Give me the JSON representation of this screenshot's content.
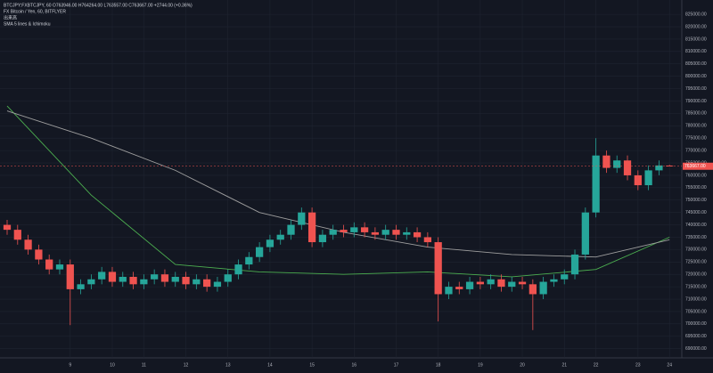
{
  "header": {
    "line1": "BTCJPY:FXBTCJPY, 60  O763946.00 H764264.00 L763557.00 C763667.00 +2744.00 (+0.36%)",
    "line2": "FX Bitcoin / Yen, 60, BITFLYER",
    "line3": "出来高",
    "line4": "SMA 5 lines & Ichimoku"
  },
  "chart_data": {
    "type": "candlestick",
    "up_color": "#26a69a",
    "down_color": "#ef5350",
    "grid": true,
    "categories": [
      null,
      null,
      null,
      null,
      null,
      null,
      "9",
      null,
      null,
      null,
      "10",
      null,
      null,
      "11",
      null,
      null,
      null,
      "12",
      null,
      null,
      null,
      "13",
      null,
      null,
      null,
      "14",
      null,
      null,
      null,
      "15",
      null,
      null,
      null,
      "16",
      null,
      null,
      null,
      "17",
      null,
      null,
      null,
      "18",
      null,
      null,
      null,
      "19",
      null,
      null,
      null,
      "20",
      null,
      null,
      null,
      "21",
      null,
      null,
      "22",
      null,
      null,
      null,
      "23",
      null,
      null,
      "24"
    ],
    "open": [
      740000,
      738000,
      734000,
      730000,
      726000,
      722000,
      724000,
      714000,
      716000,
      718000,
      721000,
      717000,
      719000,
      716000,
      718000,
      720000,
      717000,
      719000,
      716000,
      718000,
      715000,
      717000,
      720000,
      724000,
      727000,
      731000,
      734000,
      736000,
      740000,
      745000,
      733000,
      736000,
      738000,
      737000,
      739000,
      737000,
      736000,
      738000,
      736000,
      737000,
      735000,
      733000,
      712000,
      715000,
      714000,
      717000,
      716000,
      718000,
      715000,
      717000,
      716000,
      712000,
      717000,
      718000,
      720000,
      728000,
      745000,
      768000,
      763000,
      766000,
      760000,
      756000,
      762000,
      763946
    ],
    "high": [
      742000,
      740000,
      736000,
      732000,
      728000,
      726000,
      726000,
      718000,
      720000,
      723000,
      723000,
      721000,
      721000,
      720000,
      722000,
      722000,
      721000,
      721000,
      720000,
      720000,
      719000,
      722000,
      726000,
      729000,
      733000,
      736000,
      738000,
      742000,
      747000,
      747000,
      738000,
      740000,
      740000,
      741000,
      741000,
      739000,
      740000,
      740000,
      739000,
      739000,
      737000,
      735000,
      717000,
      717000,
      719000,
      719000,
      720000,
      720000,
      719000,
      719000,
      718000,
      719000,
      720000,
      722000,
      730000,
      747000,
      775000,
      770000,
      768000,
      768000,
      762000,
      764000,
      766000,
      764264
    ],
    "low": [
      736000,
      732000,
      728000,
      724000,
      720000,
      720000,
      699500,
      712000,
      714000,
      716000,
      715000,
      715000,
      714000,
      714000,
      716000,
      715000,
      715000,
      714000,
      714000,
      713000,
      713000,
      715000,
      718000,
      722000,
      725000,
      729000,
      732000,
      734000,
      738000,
      731000,
      731000,
      734000,
      735000,
      735000,
      735000,
      734000,
      734000,
      734000,
      734000,
      733000,
      731000,
      701000,
      710000,
      712000,
      712000,
      714000,
      714000,
      713000,
      713000,
      714000,
      697500,
      710000,
      715000,
      716000,
      718000,
      726000,
      743000,
      761000,
      761000,
      758000,
      754000,
      754000,
      760000,
      763557
    ],
    "close": [
      738000,
      734000,
      730000,
      726000,
      722000,
      724000,
      714000,
      716000,
      718000,
      721000,
      717000,
      719000,
      716000,
      718000,
      720000,
      717000,
      719000,
      716000,
      718000,
      715000,
      717000,
      720000,
      724000,
      727000,
      731000,
      734000,
      736000,
      740000,
      745000,
      733000,
      736000,
      738000,
      737000,
      739000,
      737000,
      736000,
      738000,
      736000,
      737000,
      735000,
      733000,
      712000,
      715000,
      714000,
      717000,
      716000,
      718000,
      715000,
      717000,
      716000,
      712000,
      717000,
      718000,
      720000,
      728000,
      745000,
      768000,
      763000,
      766000,
      760000,
      756000,
      762000,
      764000,
      763667
    ],
    "last_label": "763667.00",
    "last_color": "#ef5350",
    "overlays": [
      {
        "color": "#4caf50",
        "x": [
          0,
          8,
          16,
          24,
          32,
          40,
          48,
          56,
          63
        ],
        "values": [
          788000,
          752000,
          724000,
          721000,
          720000,
          721000,
          719000,
          722000,
          735000
        ]
      },
      {
        "color": "#9e9e9e",
        "x": [
          0,
          8,
          16,
          24,
          32,
          40,
          48,
          56,
          63
        ],
        "values": [
          786000,
          775000,
          762000,
          745000,
          737000,
          731000,
          728000,
          727000,
          734000
        ]
      }
    ],
    "ylim": [
      687000,
      829000
    ],
    "yticks": [
      {
        "value": 690000,
        "label": "690000.00"
      },
      {
        "value": 695000,
        "label": "695000.00"
      },
      {
        "value": 700000,
        "label": "700000.00"
      },
      {
        "value": 705000,
        "label": "705000.00"
      },
      {
        "value": 710000,
        "label": "710000.00"
      },
      {
        "value": 715000,
        "label": "715000.00"
      },
      {
        "value": 720000,
        "label": "720000.00"
      },
      {
        "value": 725000,
        "label": "725000.00"
      },
      {
        "value": 730000,
        "label": "730000.00"
      },
      {
        "value": 735000,
        "label": "735000.00"
      },
      {
        "value": 740000,
        "label": "740000.00"
      },
      {
        "value": 745000,
        "label": "745000.00"
      },
      {
        "value": 750000,
        "label": "750000.00"
      },
      {
        "value": 755000,
        "label": "755000.00"
      },
      {
        "value": 760000,
        "label": "760000.00"
      },
      {
        "value": 765000,
        "label": "765000.00"
      },
      {
        "value": 770000,
        "label": "770000.00"
      },
      {
        "value": 775000,
        "label": "775000.00"
      },
      {
        "value": 780000,
        "label": "780000.00"
      },
      {
        "value": 785000,
        "label": "785000.00"
      },
      {
        "value": 790000,
        "label": "790000.00"
      },
      {
        "value": 795000,
        "label": "795000.00"
      },
      {
        "value": 800000,
        "label": "800000.00"
      },
      {
        "value": 805000,
        "label": "805000.00"
      },
      {
        "value": 810000,
        "label": "810000.00"
      },
      {
        "value": 815000,
        "label": "815000.00"
      },
      {
        "value": 820000,
        "label": "820000.00"
      },
      {
        "value": 825000,
        "label": "825000.00"
      }
    ]
  }
}
